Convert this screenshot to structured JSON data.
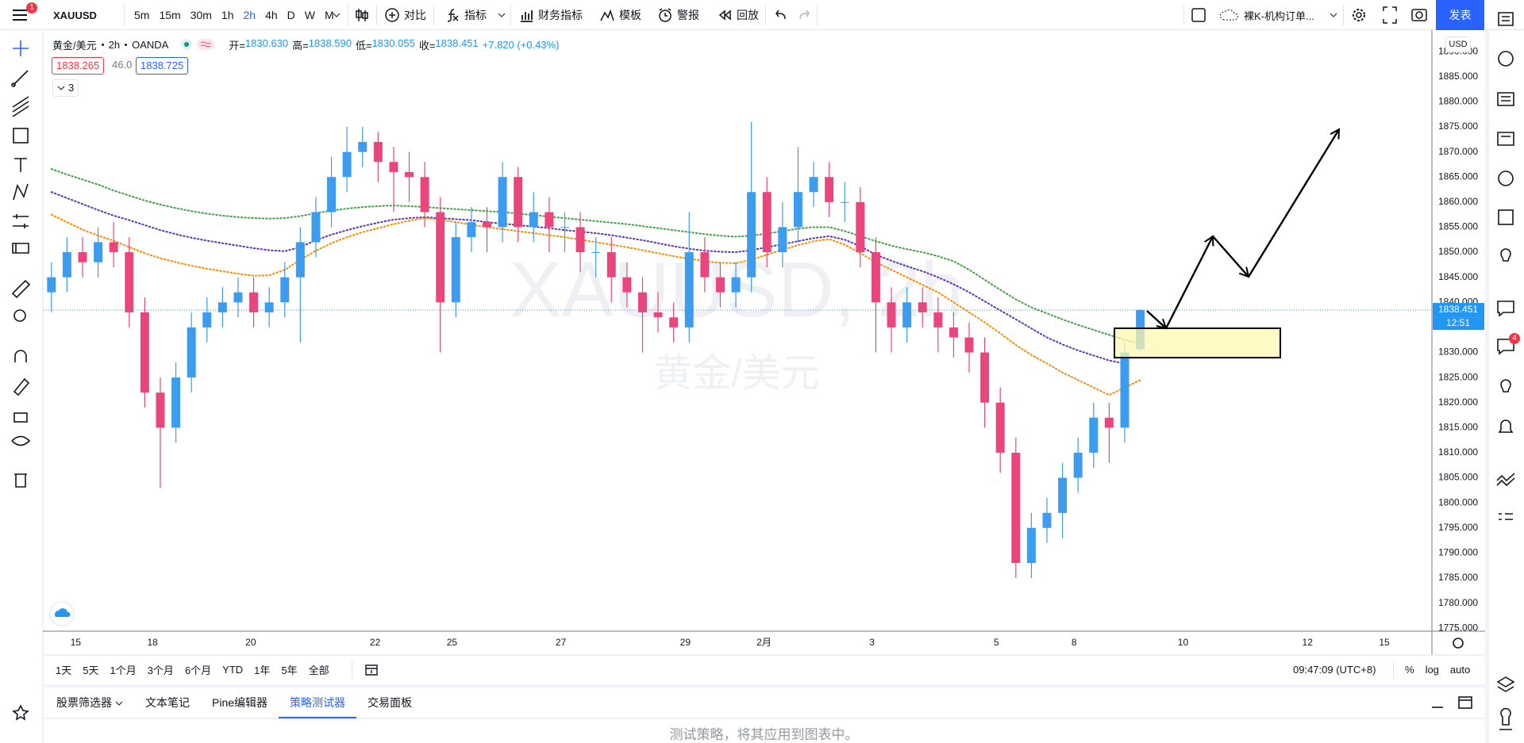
{
  "toolbar": {
    "menu_badge": "1",
    "symbol": "XAUUSD",
    "intervals": [
      "5m",
      "15m",
      "30m",
      "1h",
      "2h",
      "4h",
      "D",
      "W",
      "M"
    ],
    "active": "2h",
    "buttons": [
      "对比",
      "指标",
      "财务指标",
      "模板",
      "警报",
      "回放"
    ],
    "layout_name": "裸K-机构订单...",
    "publish": "发表"
  },
  "legend": {
    "symbol": "黄金/美元",
    "interval": "2h",
    "exchange": "OANDA",
    "items": [
      {
        "label": "开=",
        "value": "1830.630"
      },
      {
        "label": "高=",
        "value": "1838.590"
      },
      {
        "label": "低=",
        "value": "1830.055"
      },
      {
        "label": "收=",
        "value": "1838.451"
      }
    ],
    "change": "+7.820 (+0.43%)"
  },
  "quote": {
    "bid": "1838.265",
    "spread": "46.0",
    "ask": "1838.725"
  },
  "indicators_collapsed": "3",
  "watermark": {
    "title": "XAUUSD, 2h",
    "subtitle": "黄金/美元"
  },
  "chart_data": {
    "type": "candlestick",
    "open": [
      1842,
      1845,
      1850,
      1848,
      1852,
      1850,
      1838,
      1822,
      1815,
      1825,
      1835,
      1838,
      1840,
      1842,
      1838,
      1840,
      1845,
      1852,
      1858,
      1865,
      1870,
      1872,
      1868,
      1866,
      1865,
      1858,
      1840,
      1853,
      1856,
      1855,
      1865,
      1855,
      1858,
      1855,
      1855,
      1850,
      1850,
      1845,
      1842,
      1838,
      1837,
      1835,
      1850,
      1845,
      1842,
      1845,
      1862,
      1850,
      1855,
      1862,
      1865,
      1860,
      1860,
      1850,
      1840,
      1835,
      1840,
      1838,
      1835,
      1833,
      1830,
      1820,
      1810,
      1788,
      1795,
      1798,
      1805,
      1810,
      1817,
      1815,
      1830.63
    ],
    "high": [
      1848,
      1853,
      1853,
      1855,
      1856,
      1853,
      1841,
      1825,
      1828,
      1838,
      1841,
      1843,
      1845,
      1845,
      1843,
      1848,
      1855,
      1861,
      1869,
      1875,
      1875,
      1874,
      1871,
      1870,
      1868,
      1861,
      1856,
      1859,
      1859,
      1868,
      1867,
      1862,
      1861,
      1858,
      1858,
      1853,
      1853,
      1848,
      1845,
      1842,
      1840,
      1858,
      1853,
      1848,
      1848,
      1876,
      1865,
      1860,
      1871,
      1868,
      1868,
      1864,
      1863,
      1853,
      1843,
      1843,
      1843,
      1841,
      1838,
      1836,
      1833,
      1823,
      1813,
      1798,
      1801,
      1808,
      1813,
      1820,
      1820,
      1832,
      1838.59
    ],
    "low": [
      1838,
      1842,
      1845,
      1845,
      1847,
      1835,
      1819,
      1803,
      1812,
      1822,
      1832,
      1835,
      1837,
      1835,
      1835,
      1837,
      1832,
      1849,
      1855,
      1862,
      1867,
      1864,
      1858,
      1860,
      1855,
      1830,
      1837,
      1850,
      1850,
      1852,
      1852,
      1852,
      1850,
      1850,
      1846,
      1845,
      1840,
      1839,
      1830,
      1834,
      1832,
      1832,
      1842,
      1839,
      1839,
      1842,
      1847,
      1847,
      1852,
      1859,
      1857,
      1856,
      1847,
      1830,
      1830,
      1832,
      1835,
      1830,
      1829,
      1826,
      1815,
      1806,
      1785,
      1785,
      1792,
      1793,
      1802,
      1807,
      1808,
      1812,
      1830.055
    ],
    "close": [
      1845,
      1850,
      1848,
      1852,
      1850,
      1838,
      1822,
      1815,
      1825,
      1835,
      1838,
      1840,
      1842,
      1838,
      1840,
      1845,
      1852,
      1858,
      1865,
      1870,
      1872,
      1868,
      1866,
      1865,
      1858,
      1840,
      1853,
      1856,
      1855,
      1865,
      1855,
      1858,
      1855,
      1855,
      1850,
      1850,
      1845,
      1842,
      1838,
      1837,
      1835,
      1850,
      1845,
      1842,
      1845,
      1862,
      1850,
      1855,
      1862,
      1865,
      1860,
      1860,
      1850,
      1840,
      1835,
      1840,
      1838,
      1835,
      1833,
      1830,
      1820,
      1810,
      1788,
      1795,
      1798,
      1805,
      1810,
      1817,
      1815,
      1830,
      1838.451
    ],
    "up_color": "#3b9cf0",
    "down_color": "#e8467c",
    "overlays": [
      {
        "color": "#43a047",
        "values": [
          1866.6,
          1865.5,
          1864.5,
          1863.5,
          1862.3,
          1861.3,
          1860.3,
          1859.5,
          1858.8,
          1858.2,
          1857.7,
          1857.3,
          1857.0,
          1856.8,
          1856.7,
          1856.8,
          1857.2,
          1857.8,
          1858.3,
          1858.7,
          1859.0,
          1859.2,
          1859.3,
          1859.2,
          1859.0,
          1858.8,
          1858.6,
          1858.4,
          1858.2,
          1858.0,
          1857.7,
          1857.4,
          1857.1,
          1856.8,
          1856.5,
          1856.2,
          1855.9,
          1855.6,
          1855.2,
          1854.8,
          1854.4,
          1854.0,
          1853.6,
          1853.3,
          1853.1,
          1853.3,
          1853.7,
          1854.2,
          1854.7,
          1855.0,
          1855.0,
          1854.2,
          1853.2,
          1852.2,
          1851.3,
          1850.6,
          1850.0,
          1849.2,
          1848.2,
          1846.5,
          1844.5,
          1842.5,
          1840.6,
          1839.0,
          1837.8,
          1836.6,
          1835.5,
          1834.5,
          1833.5,
          1832.5,
          1831.8
        ]
      },
      {
        "color": "#5e35b1",
        "values": [
          1862.0,
          1860.8,
          1859.6,
          1858.4,
          1857.3,
          1856.4,
          1855.4,
          1854.4,
          1853.6,
          1852.9,
          1852.3,
          1851.8,
          1851.3,
          1850.8,
          1850.4,
          1850.2,
          1851.0,
          1852.4,
          1853.5,
          1854.4,
          1855.2,
          1855.9,
          1856.5,
          1856.8,
          1857.0,
          1856.8,
          1856.6,
          1856.4,
          1856.0,
          1855.7,
          1855.4,
          1855.1,
          1854.8,
          1854.4,
          1854.1,
          1853.8,
          1853.4,
          1852.9,
          1852.4,
          1851.8,
          1851.2,
          1850.7,
          1850.3,
          1850.1,
          1850.0,
          1850.4,
          1851.0,
          1851.6,
          1852.2,
          1852.8,
          1853.2,
          1852.5,
          1851.2,
          1849.5,
          1848.3,
          1847.2,
          1846.2,
          1845.0,
          1843.6,
          1842.0,
          1840.2,
          1838.4,
          1836.6,
          1834.8,
          1833.0,
          1831.6,
          1830.4,
          1829.4,
          1828.4,
          1827.8,
          null
        ]
      },
      {
        "color": "#fb8c00",
        "values": [
          1857.5,
          1856.0,
          1854.5,
          1853.3,
          1852.3,
          1851.0,
          1849.8,
          1848.8,
          1848.0,
          1847.3,
          1846.7,
          1846.2,
          1845.7,
          1845.3,
          1845.4,
          1846.5,
          1848.5,
          1850.3,
          1851.8,
          1853.0,
          1854.0,
          1854.8,
          1855.6,
          1856.3,
          1856.8,
          1856.5,
          1856.0,
          1855.5,
          1855.0,
          1854.6,
          1854.2,
          1853.8,
          1853.4,
          1853.0,
          1852.5,
          1852.0,
          1851.5,
          1851.0,
          1850.4,
          1849.8,
          1849.2,
          1848.7,
          1848.2,
          1847.9,
          1847.8,
          1848.5,
          1849.5,
          1850.5,
          1851.4,
          1852.2,
          1852.6,
          1851.5,
          1849.8,
          1848.0,
          1846.5,
          1845.0,
          1843.5,
          1842.0,
          1840.0,
          1838.0,
          1836.0,
          1833.8,
          1831.5,
          1829.5,
          1827.8,
          1826.0,
          1824.5,
          1823.0,
          1821.5,
          1823.0,
          1824.5
        ]
      }
    ],
    "xlim": [
      -0.5,
      88.75
    ],
    "xticks": [
      {
        "value": 1.56,
        "label": "15"
      },
      {
        "value": 6.5,
        "label": "18"
      },
      {
        "value": 12.81,
        "label": "20"
      },
      {
        "value": 20.81,
        "label": "22"
      },
      {
        "value": 25.75,
        "label": "25"
      },
      {
        "value": 32.75,
        "label": "27"
      },
      {
        "value": 40.75,
        "label": "29"
      },
      {
        "value": 45.81,
        "label": "2月"
      },
      {
        "value": 52.75,
        "label": "3"
      },
      {
        "value": 60.75,
        "label": "5"
      },
      {
        "value": 65.75,
        "label": "8"
      },
      {
        "value": 72.75,
        "label": "10"
      },
      {
        "value": 80.75,
        "label": "12"
      },
      {
        "value": 85.69,
        "label": "15"
      }
    ],
    "ylim": [
      1774.4,
      1894.3
    ],
    "yticks": [
      {
        "value": 1775,
        "label": "1775.000"
      },
      {
        "value": 1780,
        "label": "1780.000"
      },
      {
        "value": 1785,
        "label": "1785.000"
      },
      {
        "value": 1790,
        "label": "1790.000"
      },
      {
        "value": 1795,
        "label": "1795.000"
      },
      {
        "value": 1800,
        "label": "1800.000"
      },
      {
        "value": 1805,
        "label": "1805.000"
      },
      {
        "value": 1810,
        "label": "1810.000"
      },
      {
        "value": 1815,
        "label": "1815.000"
      },
      {
        "value": 1820,
        "label": "1820.000"
      },
      {
        "value": 1825,
        "label": "1825.000"
      },
      {
        "value": 1830,
        "label": "1830.000"
      },
      {
        "value": 1835,
        "label": "1835.000"
      },
      {
        "value": 1840,
        "label": "1840.000"
      },
      {
        "value": 1845,
        "label": "1845.000"
      },
      {
        "value": 1850,
        "label": "1850.000"
      },
      {
        "value": 1855,
        "label": "1855.000"
      },
      {
        "value": 1860,
        "label": "1860.000"
      },
      {
        "value": 1865,
        "label": "1865.000"
      },
      {
        "value": 1870,
        "label": "1870.000"
      },
      {
        "value": 1875,
        "label": "1875.000"
      },
      {
        "value": 1880,
        "label": "1880.000"
      },
      {
        "value": 1885,
        "label": "1885.000"
      },
      {
        "value": 1890,
        "label": "1890.000"
      }
    ],
    "grid": false,
    "currency": "USD",
    "countdown": "12:51"
  },
  "range_bar": {
    "ranges": [
      "1天",
      "5天",
      "1个月",
      "3个月",
      "6个月",
      "YTD",
      "1年",
      "5年",
      "全部"
    ],
    "clock": "09:47:09 (UTC+8)",
    "scale_options": [
      "%",
      "log",
      "auto"
    ]
  },
  "panel": {
    "tabs": [
      "股票筛选器",
      "文本笔记",
      "Pine编辑器",
      "策略测试器",
      "交易面板"
    ],
    "active": "策略测试器",
    "message": "测试策略，将其应用到图表中。"
  },
  "sidebar": {
    "notification_badge": "4"
  }
}
